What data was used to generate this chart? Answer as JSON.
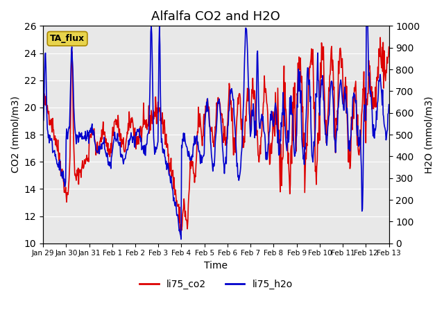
{
  "title": "Alfalfa CO2 and H2O",
  "xlabel": "Time",
  "ylabel_left": "CO2 (mmol/m3)",
  "ylabel_right": "H2O (mmol/m3)",
  "ylim_left": [
    10,
    26
  ],
  "ylim_right": [
    0,
    1000
  ],
  "yticks_left": [
    10,
    12,
    14,
    16,
    18,
    20,
    22,
    24,
    26
  ],
  "yticks_right": [
    0,
    100,
    200,
    300,
    400,
    500,
    600,
    700,
    800,
    900,
    1000
  ],
  "xtick_labels": [
    "Jan 29",
    "Jan 30",
    "Jan 31",
    "Feb 1",
    "Feb 2",
    "Feb 3",
    "Feb 4",
    "Feb 5",
    "Feb 6",
    "Feb 7",
    "Feb 8",
    "Feb 9",
    "Feb 10",
    "Feb 11",
    "Feb 12",
    "Feb 13"
  ],
  "color_co2": "#dd0000",
  "color_h2o": "#0000cc",
  "legend_label_co2": "li75_co2",
  "legend_label_h2o": "li75_h2o",
  "annotation_text": "TA_flux",
  "annotation_box_color": "#e8d44d",
  "background_color": "#e8e8e8",
  "line_width": 1.2
}
